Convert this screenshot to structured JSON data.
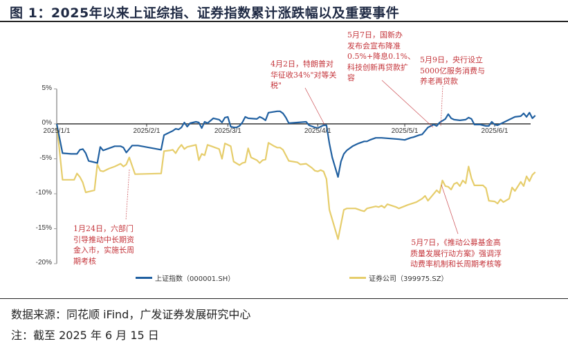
{
  "title": "图 1：2025年以来上证综指、证券指数累计涨跌幅以及重要事件",
  "source": "数据来源：同花顺 iFind，广发证券发展研究中心",
  "note": "注：截至 2025 年 6 月 15 日",
  "colors": {
    "sse": "#1f5fa0",
    "securities": "#e6cd6b",
    "annotation": "#c4343a",
    "axis": "#999999",
    "zero_line": "#333333"
  },
  "legend": [
    {
      "label": "上证指数（000001.SH）",
      "color": "#1f5fa0"
    },
    {
      "label": "证券公司（399975.SZ）",
      "color": "#e6cd6b"
    }
  ],
  "annotations": [
    {
      "id": "jan24",
      "text": "1月24日，六部门\n引导推动中长期资\n金入市，实施长周\n期考核"
    },
    {
      "id": "apr2",
      "text": "4月2日，特朗普对\n华征收34%\"对等关\n税\""
    },
    {
      "id": "may7a",
      "text": "5月7日，国新办\n发布会宣布降准\n0.5%+降息0.1%、\n科技创新再贷款扩\n容"
    },
    {
      "id": "may9",
      "text": "5月9日，央行设立\n5000亿服务消费与\n养老再贷款"
    },
    {
      "id": "may7b",
      "text": "5月7日，《推动公募基金高\n质量发展行动方案》强调浮\n动费率机制和长周期考核等"
    }
  ],
  "chart_data": {
    "type": "line",
    "title": "2025年以来上证综指、证券指数累计涨跌幅以及重要事件",
    "xlabel": "",
    "ylabel": "",
    "ylim": [
      -20,
      5
    ],
    "yticks": [
      "5%",
      "0%",
      "-5%",
      "-10%",
      "-15%",
      "-20%"
    ],
    "xticks": [
      "2025/1/1",
      "2025/2/1",
      "2025/3/1",
      "2025/4/1",
      "2025/5/1",
      "2025/6/1"
    ],
    "grid": false,
    "legend_position": "bottom",
    "x_day_index_note": "day 0 = 2025/1/1",
    "series": [
      {
        "name": "上证指数（000001.SH）",
        "color": "#1f5fa0",
        "points": [
          [
            0,
            0
          ],
          [
            2,
            -4.2
          ],
          [
            5,
            -4.3
          ],
          [
            7,
            -4.3
          ],
          [
            8,
            -3.7
          ],
          [
            9,
            -3.6
          ],
          [
            10,
            -4.2
          ],
          [
            11,
            -5.3
          ],
          [
            14,
            -5.6
          ],
          [
            15,
            -3.3
          ],
          [
            16,
            -3.8
          ],
          [
            18,
            -3.5
          ],
          [
            20,
            -3.2
          ],
          [
            22,
            -3.2
          ],
          [
            23,
            -3.4
          ],
          [
            24,
            -4.1
          ],
          [
            26,
            -3.1
          ],
          [
            28,
            -3.1
          ],
          [
            36,
            -3.7
          ],
          [
            37,
            -1.6
          ],
          [
            39,
            -1.2
          ],
          [
            40,
            -1.0
          ],
          [
            41,
            -0.7
          ],
          [
            42,
            -0.8
          ],
          [
            43,
            -0.5
          ],
          [
            44,
            0.2
          ],
          [
            45,
            -0.4
          ],
          [
            46,
            0.1
          ],
          [
            48,
            0.3
          ],
          [
            49,
            0.2
          ],
          [
            50,
            -0.6
          ],
          [
            51,
            0.3
          ],
          [
            52,
            0.1
          ],
          [
            54,
            0.8
          ],
          [
            56,
            0.6
          ],
          [
            57,
            0.2
          ],
          [
            58,
            0.9
          ],
          [
            59,
            1.0
          ],
          [
            60,
            -0.4
          ],
          [
            61,
            -0.5
          ],
          [
            62,
            -0.5
          ],
          [
            63,
            -0.3
          ],
          [
            64,
            0.2
          ],
          [
            65,
            1.0
          ],
          [
            66,
            0.8
          ],
          [
            69,
            0.7
          ],
          [
            70,
            1.0
          ],
          [
            71,
            0.8
          ],
          [
            72,
            0.5
          ],
          [
            73,
            1.6
          ],
          [
            76,
            1.8
          ],
          [
            77,
            1.8
          ],
          [
            78,
            1.5
          ],
          [
            79,
            0.9
          ],
          [
            80,
            0.1
          ],
          [
            83,
            0.2
          ],
          [
            86,
            0.3
          ],
          [
            87,
            -0.2
          ],
          [
            89,
            -0.5
          ],
          [
            90,
            -0.6
          ],
          [
            91,
            -0.4
          ],
          [
            92,
            -0.2
          ],
          [
            93,
            -0.2
          ],
          [
            94,
            -2.8
          ],
          [
            95,
            -4.8
          ],
          [
            97,
            -7.6
          ],
          [
            98,
            -5.4
          ],
          [
            99,
            -4.3
          ],
          [
            100,
            -3.8
          ],
          [
            102,
            -3.2
          ],
          [
            104,
            -2.8
          ],
          [
            106,
            -2.5
          ],
          [
            107,
            -2.5
          ],
          [
            108,
            -2.3
          ],
          [
            110,
            -2.0
          ],
          [
            112,
            -2.0
          ],
          [
            115,
            -2.1
          ],
          [
            118,
            -2.2
          ],
          [
            120,
            -2.3
          ],
          [
            122,
            -2.0
          ],
          [
            123,
            -1.9
          ],
          [
            125,
            -1.6
          ],
          [
            126,
            -1.5
          ],
          [
            128,
            -0.5
          ],
          [
            130,
            -0.1
          ],
          [
            131,
            -0.3
          ],
          [
            132,
            0.2
          ],
          [
            134,
            0.7
          ],
          [
            135,
            1.4
          ],
          [
            136,
            0.8
          ],
          [
            137,
            0.6
          ],
          [
            139,
            0.5
          ],
          [
            141,
            0.6
          ],
          [
            142,
            0.9
          ],
          [
            143,
            0.7
          ],
          [
            144,
            -0.1
          ],
          [
            146,
            -0.1
          ],
          [
            147,
            -0.2
          ],
          [
            148,
            -0.3
          ],
          [
            149,
            -0.3
          ],
          [
            150,
            0.3
          ],
          [
            151,
            -0.1
          ],
          [
            152,
            -0.2
          ],
          [
            154,
            0.2
          ],
          [
            156,
            0.6
          ],
          [
            158,
            1.0
          ],
          [
            160,
            1.1
          ],
          [
            161,
            1.5
          ],
          [
            162,
            1.0
          ],
          [
            163,
            1.6
          ],
          [
            164,
            0.8
          ],
          [
            165,
            1.2
          ]
        ]
      },
      {
        "name": "证券公司（399975.SZ）",
        "color": "#e6cd6b",
        "points": [
          [
            0,
            0
          ],
          [
            2,
            -8.0
          ],
          [
            5,
            -8.0
          ],
          [
            6,
            -8.0
          ],
          [
            7,
            -7.1
          ],
          [
            8,
            -7.6
          ],
          [
            9,
            -8.4
          ],
          [
            10,
            -9.8
          ],
          [
            13,
            -9.5
          ],
          [
            14,
            -5.8
          ],
          [
            15,
            -6.7
          ],
          [
            16,
            -6.8
          ],
          [
            18,
            -6.4
          ],
          [
            20,
            -6.1
          ],
          [
            22,
            -5.7
          ],
          [
            23,
            -6.1
          ],
          [
            24,
            -5.8
          ],
          [
            25,
            -4.8
          ],
          [
            27,
            -7.2
          ],
          [
            36,
            -7.1
          ],
          [
            37,
            -3.9
          ],
          [
            39,
            -3.8
          ],
          [
            40,
            -3.7
          ],
          [
            41,
            -4.2
          ],
          [
            42,
            -3.5
          ],
          [
            43,
            -3.0
          ],
          [
            44,
            -3.6
          ],
          [
            45,
            -3.3
          ],
          [
            48,
            -3.0
          ],
          [
            49,
            -5.2
          ],
          [
            50,
            -4.3
          ],
          [
            51,
            -4.5
          ],
          [
            52,
            -3.0
          ],
          [
            54,
            -3.3
          ],
          [
            56,
            -3.6
          ],
          [
            57,
            -5.0
          ],
          [
            58,
            -2.8
          ],
          [
            59,
            -3.0
          ],
          [
            60,
            -3.2
          ],
          [
            61,
            -5.4
          ],
          [
            63,
            -5.9
          ],
          [
            64,
            -5.6
          ],
          [
            65,
            -5.5
          ],
          [
            66,
            -3.5
          ],
          [
            67,
            -4.8
          ],
          [
            69,
            -5.2
          ],
          [
            70,
            -5.6
          ],
          [
            71,
            -5.2
          ],
          [
            72,
            -5.1
          ],
          [
            73,
            -2.7
          ],
          [
            75,
            -3.2
          ],
          [
            76,
            -3.4
          ],
          [
            77,
            -3.4
          ],
          [
            78,
            -3.7
          ],
          [
            79,
            -4.5
          ],
          [
            80,
            -5.3
          ],
          [
            83,
            -5.5
          ],
          [
            84,
            -5.8
          ],
          [
            86,
            -5.7
          ],
          [
            88,
            -6.3
          ],
          [
            89,
            -6.7
          ],
          [
            90,
            -6.8
          ],
          [
            91,
            -6.6
          ],
          [
            92,
            -6.8
          ],
          [
            93,
            -7.9
          ],
          [
            94,
            -12.3
          ],
          [
            97,
            -16.5
          ],
          [
            99,
            -12.3
          ],
          [
            100,
            -12.1
          ],
          [
            103,
            -12.1
          ],
          [
            105,
            -12.4
          ],
          [
            106,
            -12.5
          ],
          [
            107,
            -12.1
          ],
          [
            108,
            -12.0
          ],
          [
            110,
            -11.8
          ],
          [
            111,
            -11.9
          ],
          [
            112,
            -11.7
          ],
          [
            113,
            -12.0
          ],
          [
            114,
            -11.5
          ],
          [
            117,
            -11.9
          ],
          [
            118,
            -12.1
          ],
          [
            121,
            -11.6
          ],
          [
            124,
            -11.2
          ],
          [
            126,
            -10.7
          ],
          [
            127,
            -10.3
          ],
          [
            128,
            -11.0
          ],
          [
            131,
            -9.5
          ],
          [
            132,
            -9.9
          ],
          [
            133,
            -8.1
          ],
          [
            134,
            -8.9
          ],
          [
            135,
            -9.0
          ],
          [
            136,
            -9.4
          ],
          [
            137,
            -8.6
          ],
          [
            138,
            -8.4
          ],
          [
            139,
            -8.9
          ],
          [
            140,
            -8.1
          ],
          [
            141,
            -8.5
          ],
          [
            142,
            -6.1
          ],
          [
            143,
            -7.8
          ],
          [
            144,
            -8.8
          ],
          [
            147,
            -8.8
          ],
          [
            148,
            -9.2
          ],
          [
            149,
            -11.0
          ],
          [
            151,
            -11.1
          ],
          [
            152,
            -11.4
          ],
          [
            153,
            -10.8
          ],
          [
            154,
            -11.2
          ],
          [
            156,
            -10.7
          ],
          [
            157,
            -9.1
          ],
          [
            158,
            -9.6
          ],
          [
            160,
            -8.3
          ],
          [
            161,
            -8.9
          ],
          [
            162,
            -7.5
          ],
          [
            163,
            -8.2
          ],
          [
            164,
            -7.3
          ],
          [
            165,
            -6.9
          ]
        ]
      }
    ]
  }
}
